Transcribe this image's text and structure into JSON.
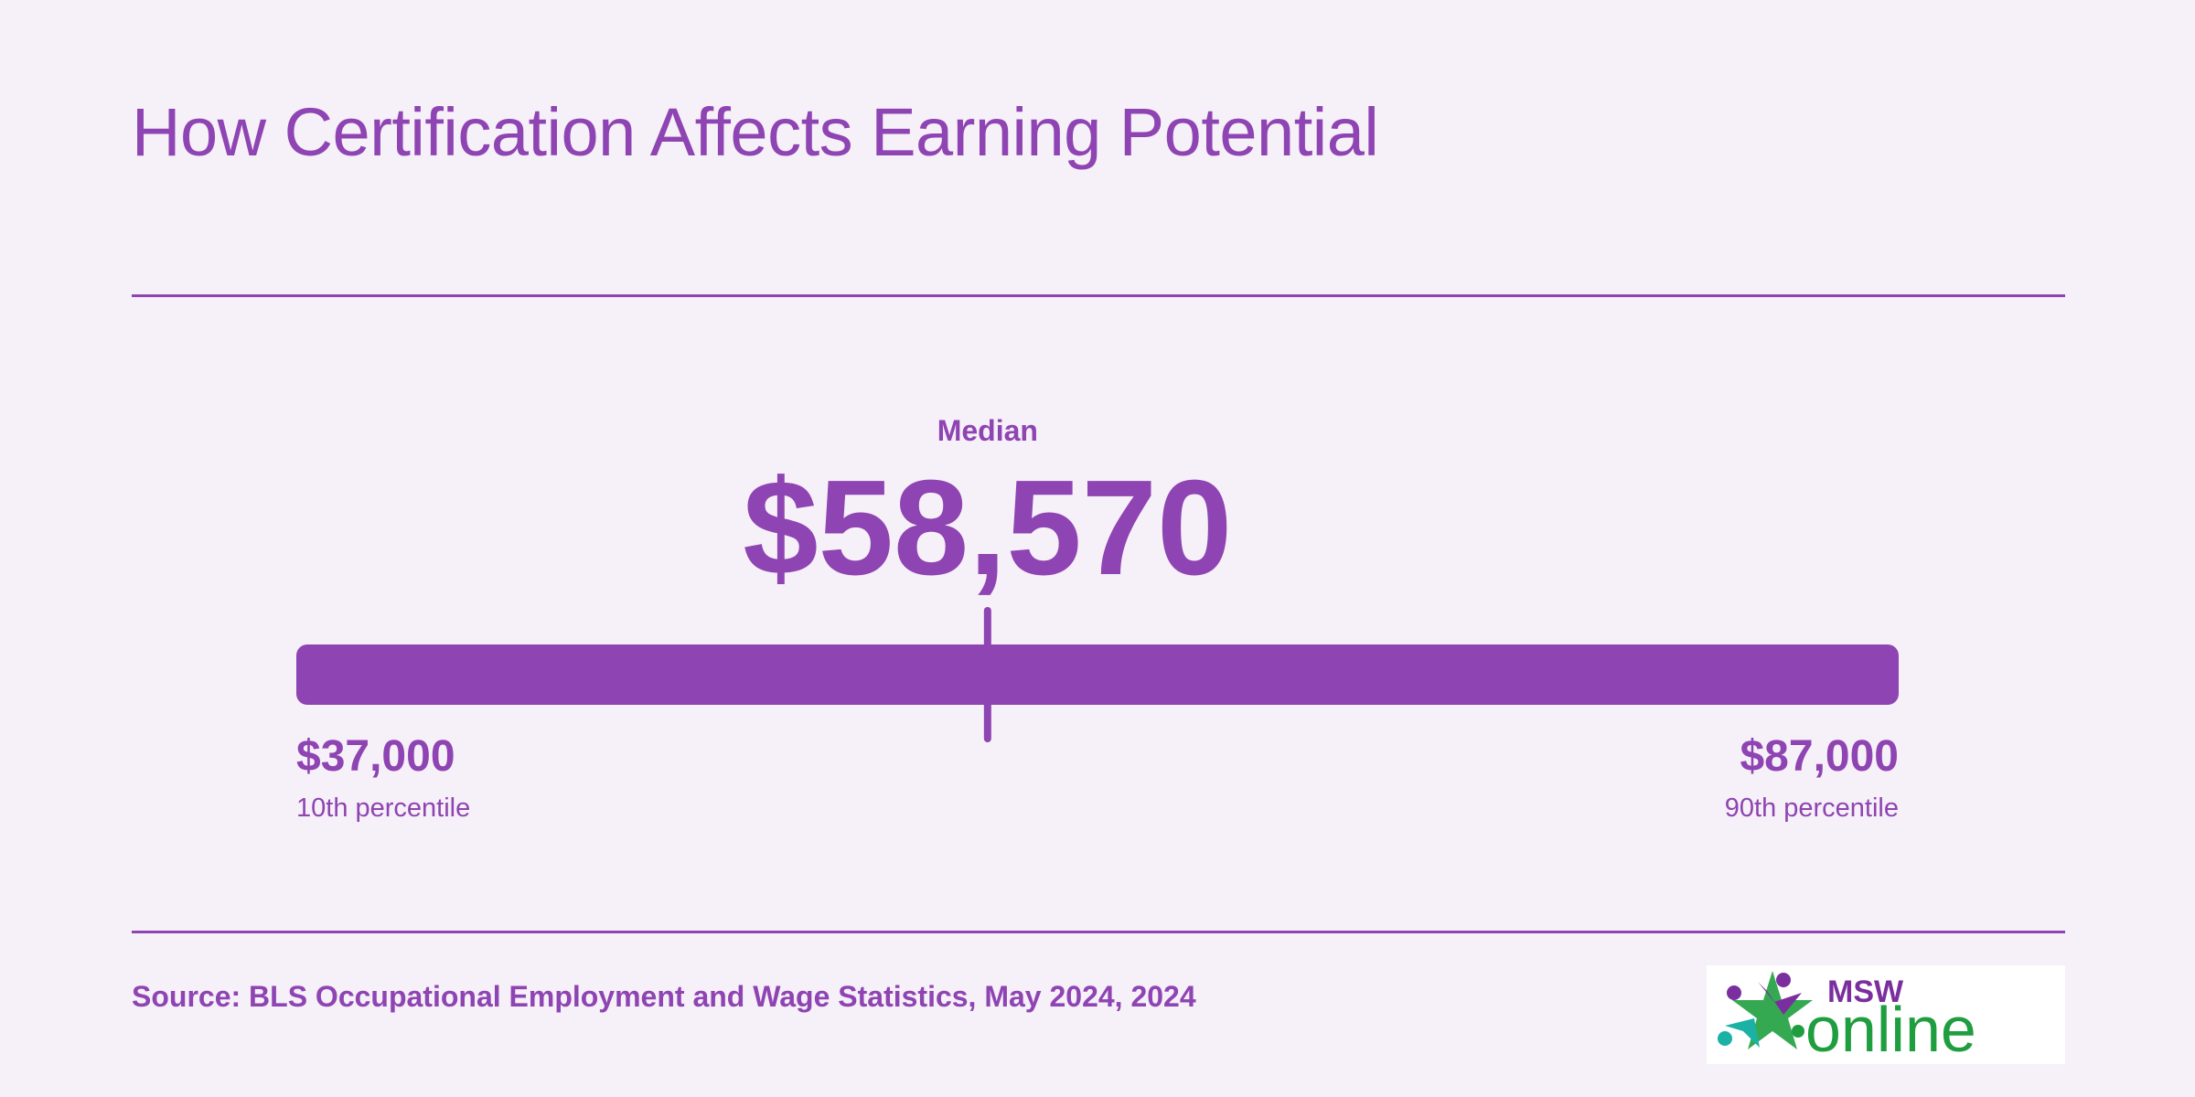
{
  "title": "How Certification Affects Earning Potential",
  "source": "Source: BLS Occupational Employment and Wage Statistics, May 2024, 2024",
  "logo": {
    "text_top": "MSW",
    "text_bottom": "online",
    "colors": {
      "purple": "#7b2f9e",
      "green": "#1f9e3f",
      "teal": "#1bb1a4"
    }
  },
  "colors": {
    "accent": "#8e44b2",
    "background": "#f6f0f8"
  },
  "chart_data": {
    "type": "range",
    "min": 37000,
    "max": 87000,
    "median": 58570,
    "labels": {
      "median_caption": "Median",
      "median_value": "$58,570",
      "min_value": "$37,000",
      "min_caption": "10th percentile",
      "max_value": "$87,000",
      "max_caption": "90th percentile"
    }
  }
}
